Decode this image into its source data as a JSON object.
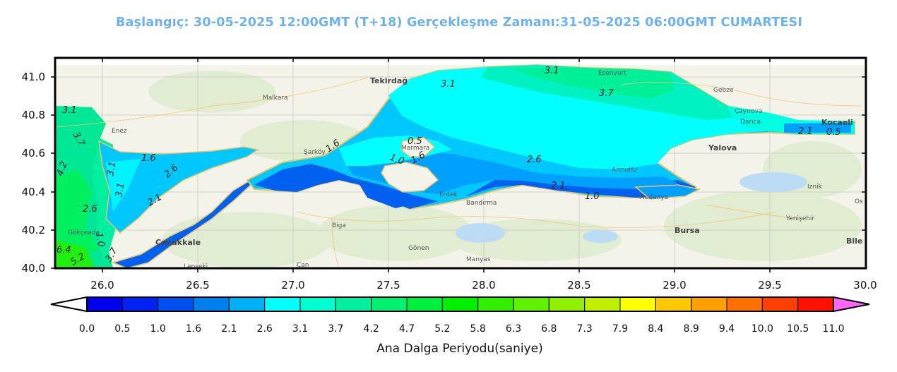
{
  "title": "Başlangıç: 30-05-2025 12:00GMT (T+18)  Gerçekleşme Zamanı:31-05-2025 06:00GMT CUMARTESI",
  "map": {
    "x_ticks": [
      "26.0",
      "26.5",
      "27.0",
      "27.5",
      "28.0",
      "28.5",
      "29.0",
      "29.5",
      "30.0"
    ],
    "y_ticks": [
      "41.0",
      "40.8",
      "40.6",
      "40.4",
      "40.2",
      "40.0"
    ],
    "contour_labels": [
      "3.1",
      "3.7",
      "3.1",
      "3.7",
      "1.6",
      "2.6",
      "3.1",
      "3.1",
      "2.1",
      "2.6",
      "1.6",
      "0.5",
      "1.0",
      "1.6",
      "2.6",
      "2.1",
      "1.0",
      "3.1",
      "2.1",
      "0.5",
      "4.2",
      "1.0",
      "3.7",
      "5.2",
      "6.4"
    ],
    "places": [
      "Tekirdağ",
      "Yalova",
      "Bursa",
      "Çanakkale",
      "Bandırma",
      "Kocaeli",
      "Biga",
      "Gönen",
      "Manyas",
      "Malkara",
      "Şarköy",
      "Enez",
      "Gökçeada",
      "Marmara Adası",
      "Erdek",
      "Mudanya",
      "Armutlu",
      "Esenyurt",
      "Çayırova",
      "Darıca",
      "Gebze",
      "Bilecik",
      "Yenişehir",
      "Iznik",
      "Osmaneli",
      "Lapseki",
      "Çan"
    ]
  },
  "colorbar": {
    "label": "Ana Dalga Periyodu(saniye)",
    "ticks": [
      "0.0",
      "0.5",
      "1.0",
      "1.6",
      "2.1",
      "2.6",
      "3.1",
      "3.7",
      "4.2",
      "4.7",
      "5.2",
      "5.8",
      "6.3",
      "6.8",
      "7.3",
      "7.9",
      "8.4",
      "8.9",
      "9.4",
      "10.0",
      "10.5",
      "11.0"
    ],
    "colors": [
      "#0000f0",
      "#0022f2",
      "#0050f0",
      "#007ff0",
      "#00b0f4",
      "#00ffff",
      "#00ffd0",
      "#00f0a0",
      "#00f070",
      "#00f040",
      "#00f000",
      "#30f000",
      "#60f000",
      "#90f000",
      "#c0f000",
      "#ffff00",
      "#ffc800",
      "#ffa000",
      "#ff7000",
      "#ff4000",
      "#ff1000"
    ],
    "under_color": "#ffffff",
    "over_color": "#ff66ff"
  }
}
